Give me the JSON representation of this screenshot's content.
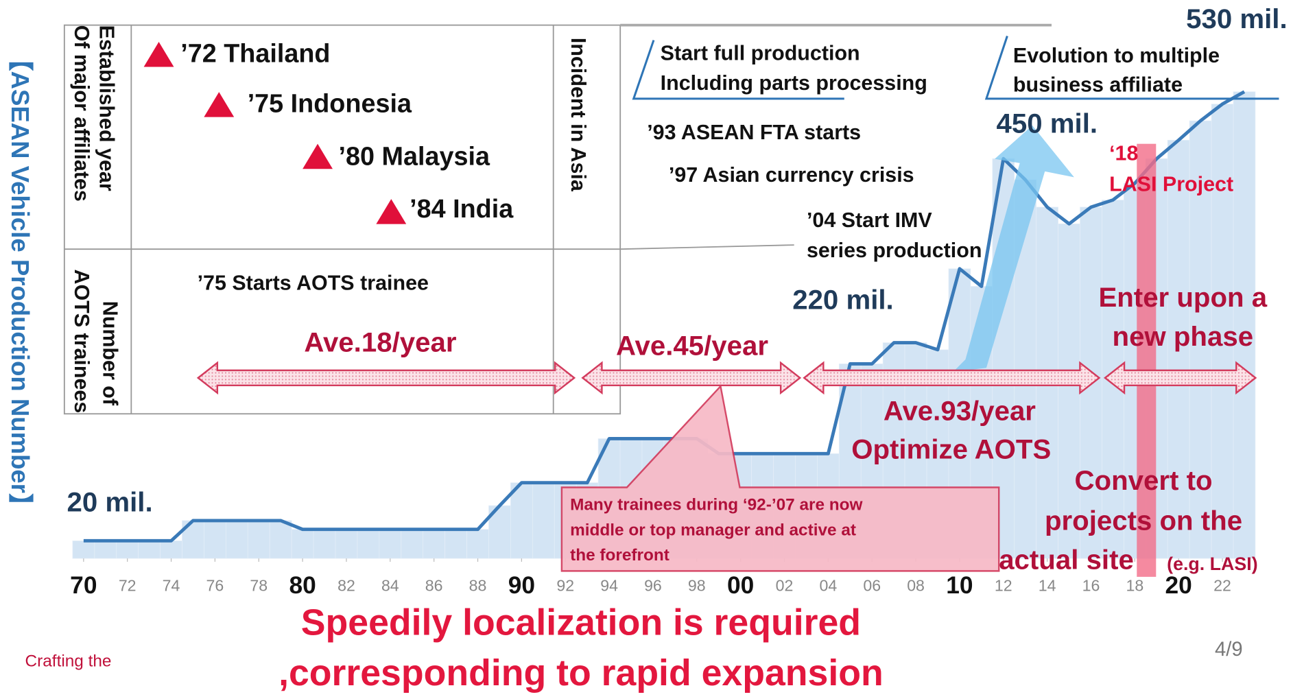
{
  "chart_data": {
    "type": "line",
    "x": [
      1970,
      1971,
      1972,
      1973,
      1974,
      1975,
      1976,
      1977,
      1978,
      1979,
      1980,
      1981,
      1982,
      1983,
      1984,
      1985,
      1986,
      1987,
      1988,
      1989,
      1990,
      1991,
      1992,
      1993,
      1994,
      1995,
      1996,
      1997,
      1998,
      1999,
      2000,
      2001,
      2002,
      2003,
      2004,
      2005,
      2006,
      2007,
      2008,
      2009,
      2010,
      2011,
      2012,
      2013,
      2014,
      2015,
      2016,
      2017,
      2018,
      2019,
      2020,
      2021,
      2022,
      2023
    ],
    "series": [
      {
        "name": "ASEAN Vehicle Production Number",
        "color": "#3a7ab8",
        "values": [
          20,
          20,
          20,
          20,
          20,
          43,
          43,
          43,
          43,
          43,
          33,
          33,
          33,
          33,
          33,
          33,
          33,
          33,
          33,
          60,
          86,
          86,
          86,
          86,
          136,
          136,
          136,
          136,
          136,
          119,
          119,
          119,
          119,
          119,
          119,
          221,
          221,
          245,
          245,
          237,
          329,
          309,
          454,
          430,
          399,
          380,
          399,
          407,
          426,
          454,
          475,
          497,
          516,
          530
        ]
      }
    ],
    "area_color": "#d3e4f4",
    "xlim": [
      1969.6,
      2024.6
    ],
    "ylim": [
      0,
      580
    ],
    "xticks": [
      {
        "value": 1970,
        "label": "70"
      },
      {
        "value": 1972,
        "label": "72"
      },
      {
        "value": 1974,
        "label": "74"
      },
      {
        "value": 1976,
        "label": "76"
      },
      {
        "value": 1978,
        "label": "78"
      },
      {
        "value": 1980,
        "label": "80"
      },
      {
        "value": 1982,
        "label": "82"
      },
      {
        "value": 1984,
        "label": "84"
      },
      {
        "value": 1986,
        "label": "86"
      },
      {
        "value": 1988,
        "label": "88"
      },
      {
        "value": 1990,
        "label": "90"
      },
      {
        "value": 1992,
        "label": "92"
      },
      {
        "value": 1994,
        "label": "94"
      },
      {
        "value": 1996,
        "label": "96"
      },
      {
        "value": 1998,
        "label": "98"
      },
      {
        "value": 2000,
        "label": "00"
      },
      {
        "value": 2002,
        "label": "02"
      },
      {
        "value": 2004,
        "label": "04"
      },
      {
        "value": 2006,
        "label": "06"
      },
      {
        "value": 2008,
        "label": "08"
      },
      {
        "value": 2010,
        "label": "10"
      },
      {
        "value": 2012,
        "label": "12"
      },
      {
        "value": 2014,
        "label": "14"
      },
      {
        "value": 2016,
        "label": "16"
      },
      {
        "value": 2018,
        "label": "18"
      },
      {
        "value": 2020,
        "label": "20"
      },
      {
        "value": 2022,
        "label": "22"
      }
    ],
    "annotations": [
      "20 mil.",
      "220 mil.",
      "450 mil.",
      "530 mil."
    ]
  },
  "slide": {
    "side_title": "【ASEAN Vehicle Production Number】",
    "row_labels": {
      "affiliates": [
        "Established year",
        "Of major affiliates"
      ],
      "trainees": [
        "Number of",
        "AOTS  trainees"
      ],
      "incident": "Incident in Asia"
    },
    "affiliates": [
      "’72 Thailand",
      "’75 Indonesia",
      "’80 Malaysia",
      "’84 India"
    ],
    "aots_start": "’75 Starts AOTS trainee",
    "averages": [
      "Ave.18/year",
      "Ave.45/year",
      "Ave.93/year",
      "Optimize AOTS"
    ],
    "events": [
      "Start full production",
      "Including parts processing",
      "Evolution to multiple",
      "business affiliate",
      "’93 ASEAN FTA starts",
      "’97 Asian currency crisis",
      "’04 Start IMV",
      "series production"
    ],
    "lasi": [
      "‘18",
      "LASI Project"
    ],
    "phase": [
      "Enter upon a",
      "new phase",
      "Convert to",
      "projects on the",
      "actual site",
      "(e.g. LASI)"
    ],
    "callout": [
      "Many trainees during ‘92-’07 are now",
      "middle or top manager and active at",
      "the forefront"
    ],
    "conclusion": [
      "Speedily localization is required",
      ",corresponding to rapid expansion"
    ],
    "footer": "Crafting the",
    "page": "4/9"
  }
}
